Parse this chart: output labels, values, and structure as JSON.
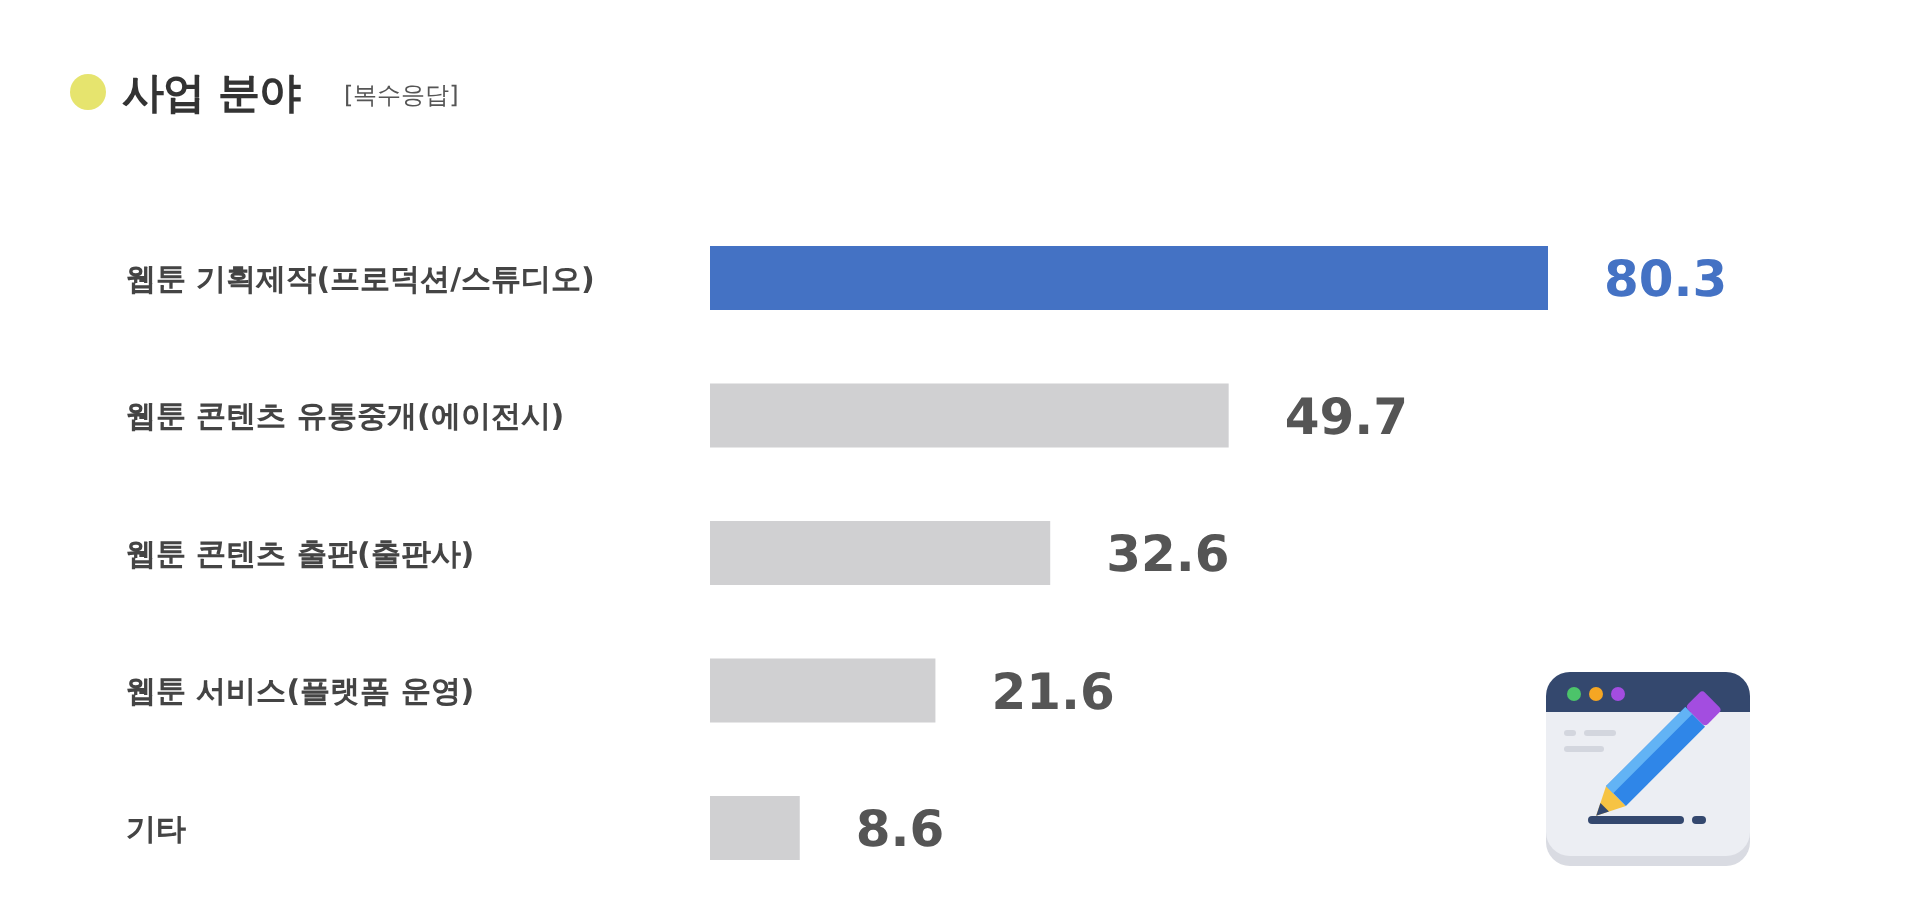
{
  "chart_data": {
    "type": "bar",
    "orientation": "horizontal",
    "title": "사업 분야",
    "subtitle": "[복수응답]",
    "categories": [
      "웹툰 기획제작(프로덕션/스튜디오)",
      "웹툰 콘텐츠 유통중개(에이전시)",
      "웹툰 콘텐츠 출판(출판사)",
      "웹툰 서비스(플랫폼 운영)",
      "기타"
    ],
    "values": [
      80.3,
      49.7,
      32.6,
      21.6,
      8.6
    ],
    "colors": [
      "#4472c4",
      "#d0d0d2",
      "#d0d0d2",
      "#d0d0d2",
      "#d0d0d2"
    ],
    "data_labels": true
  }
}
